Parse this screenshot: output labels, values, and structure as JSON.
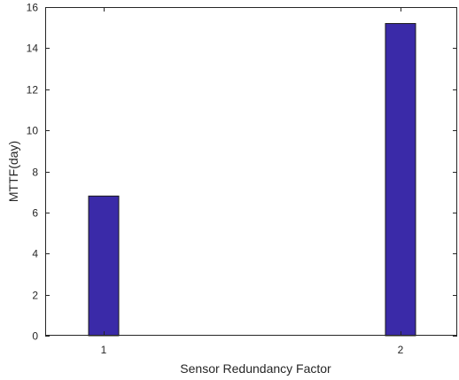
{
  "chart_data": {
    "type": "bar",
    "categories": [
      "1",
      "2"
    ],
    "values": [
      6.8,
      15.2
    ],
    "xlabel": "Sensor Redundancy Factor",
    "ylabel": "MTTF(day)",
    "ylim": [
      0,
      16
    ],
    "yticks": [
      "0",
      "2",
      "4",
      "6",
      "8",
      "10",
      "12",
      "14",
      "16"
    ],
    "grid": false,
    "legend": "none",
    "bar_color": "#3a2aa8",
    "bar_edge_color": "#1a1a1a",
    "axis_color": "#262626"
  }
}
